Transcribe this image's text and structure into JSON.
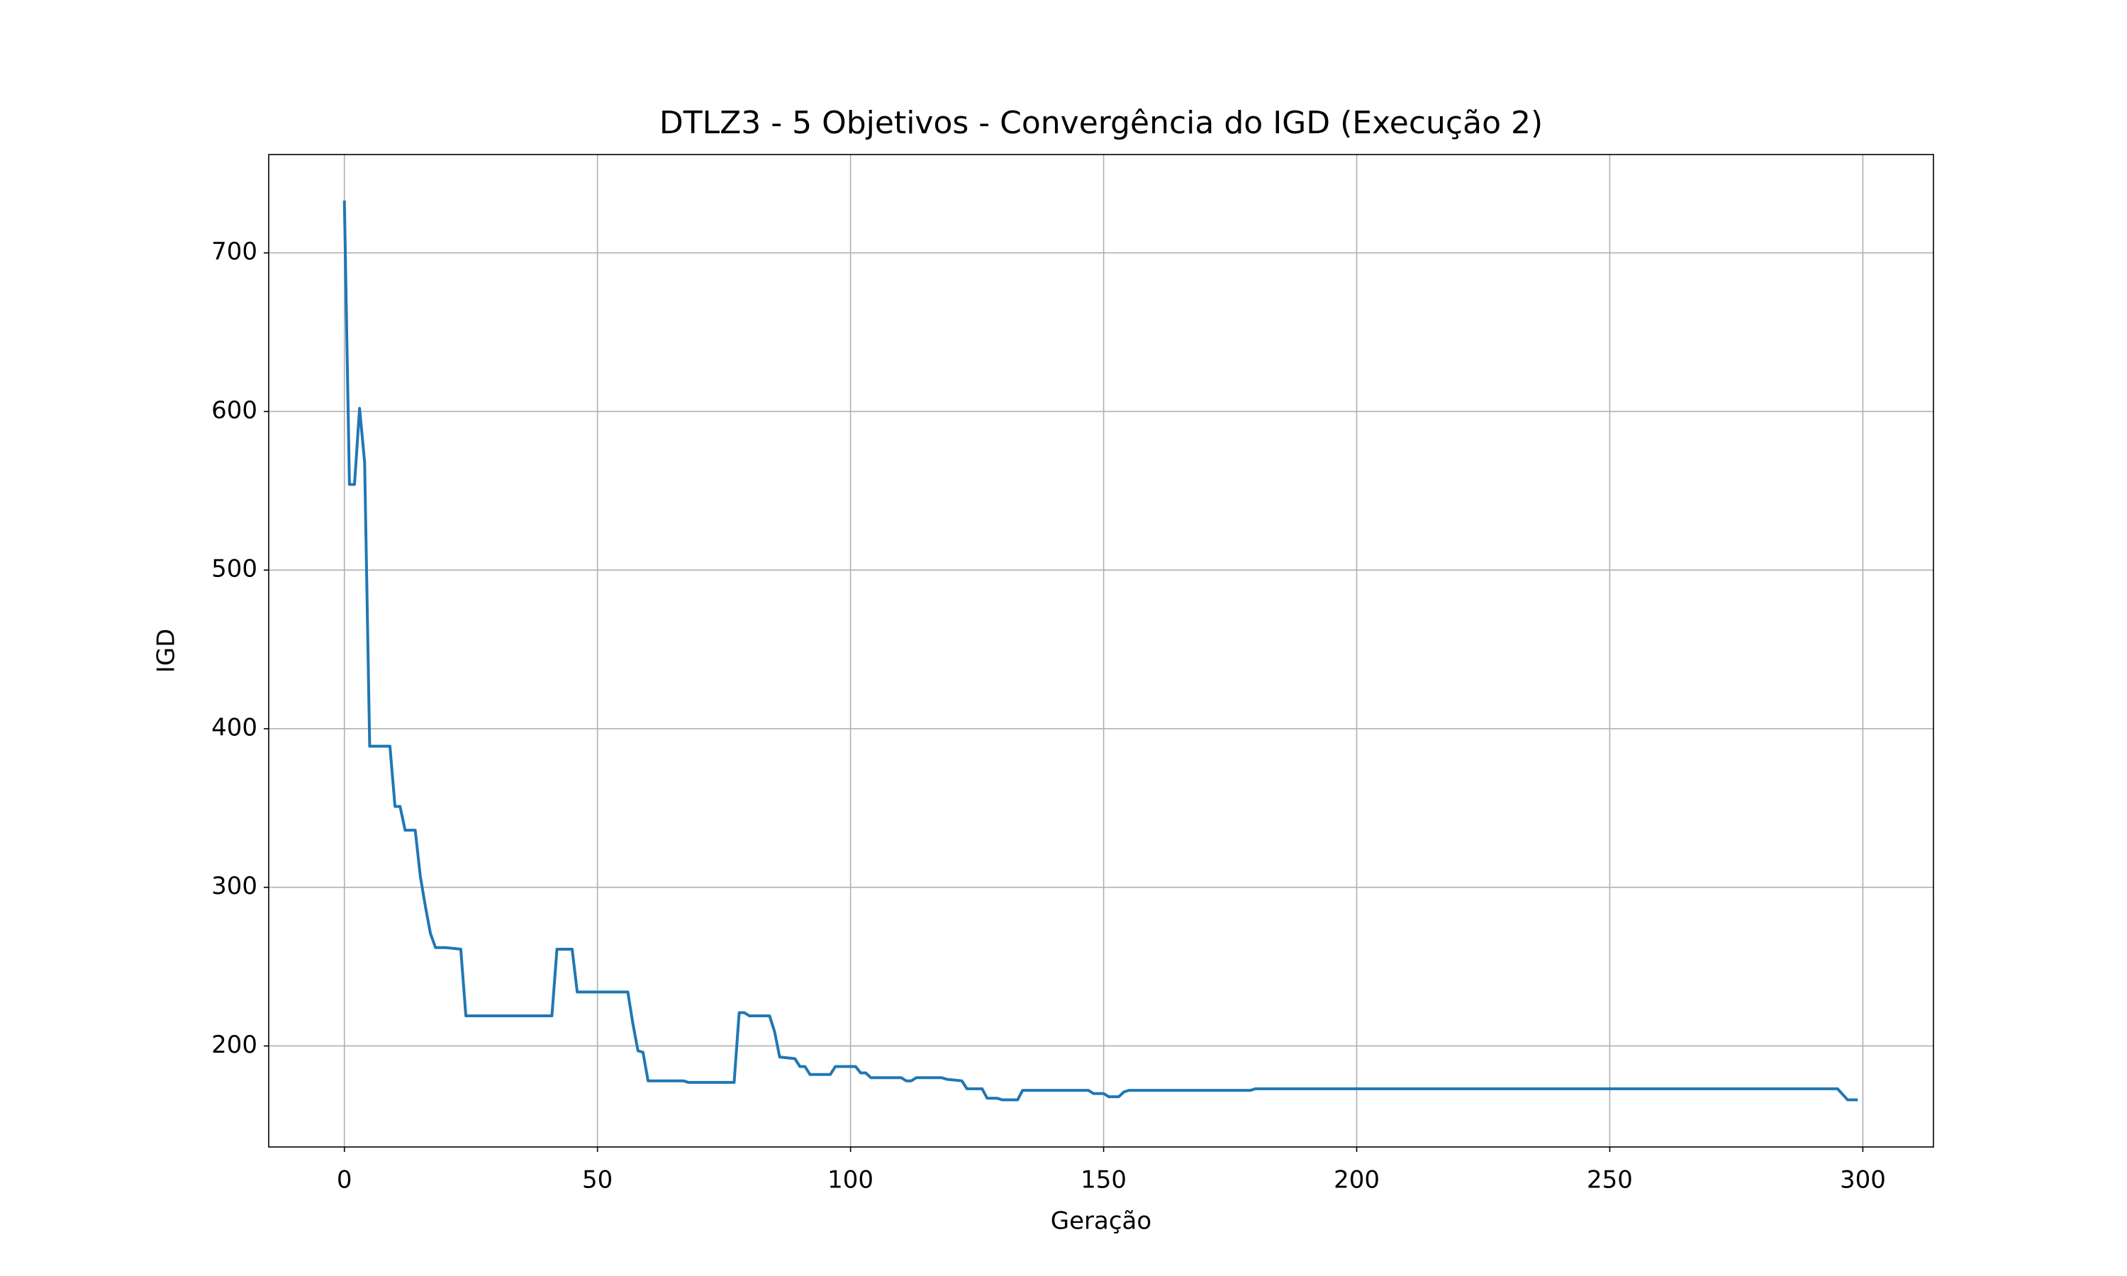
{
  "chart_data": {
    "type": "line",
    "title": "DTLZ3 - 5 Objetivos - Convergência do IGD (Execução 2)",
    "x_label": "Geração",
    "y_label": "IGD",
    "xlim": [
      -14.95,
      313.95
    ],
    "xticks": [
      0,
      50,
      100,
      150,
      200,
      250,
      300
    ],
    "ylim": [
      136.3,
      762
    ],
    "yticks": [
      200,
      300,
      400,
      500,
      600,
      700
    ],
    "grid": true,
    "series": [
      {
        "color": "#1f77b4",
        "x": [
          0,
          1,
          2,
          3,
          4,
          5,
          9,
          10,
          11,
          12,
          14,
          15,
          16,
          17,
          18,
          20,
          23,
          24,
          41,
          42,
          45,
          46,
          56,
          57,
          58,
          59,
          60,
          67,
          68,
          77,
          78,
          79,
          80,
          84,
          85,
          86,
          89,
          90,
          91,
          92,
          96,
          97,
          101,
          102,
          103,
          104,
          110,
          111,
          112,
          113,
          118,
          119,
          122,
          123,
          126,
          127,
          129,
          130,
          133,
          134,
          147,
          148,
          150,
          151,
          153,
          154,
          155,
          179,
          180,
          295,
          297,
          299
        ],
        "values": [
          733,
          554,
          554,
          602,
          568,
          389,
          389,
          351,
          351,
          336,
          336,
          307,
          288,
          271,
          262,
          262,
          261,
          219,
          219,
          261,
          261,
          234,
          234,
          214,
          197,
          196,
          178,
          178,
          177,
          177,
          221,
          221,
          219,
          219,
          209,
          193,
          192,
          187,
          187,
          182,
          182,
          187,
          187,
          183,
          183,
          180,
          180,
          178,
          178,
          180,
          180,
          179,
          178,
          173,
          173,
          167,
          167,
          166,
          166,
          172,
          172,
          170,
          170,
          168,
          168,
          171,
          172,
          172,
          173,
          173,
          166,
          166
        ]
      }
    ]
  }
}
